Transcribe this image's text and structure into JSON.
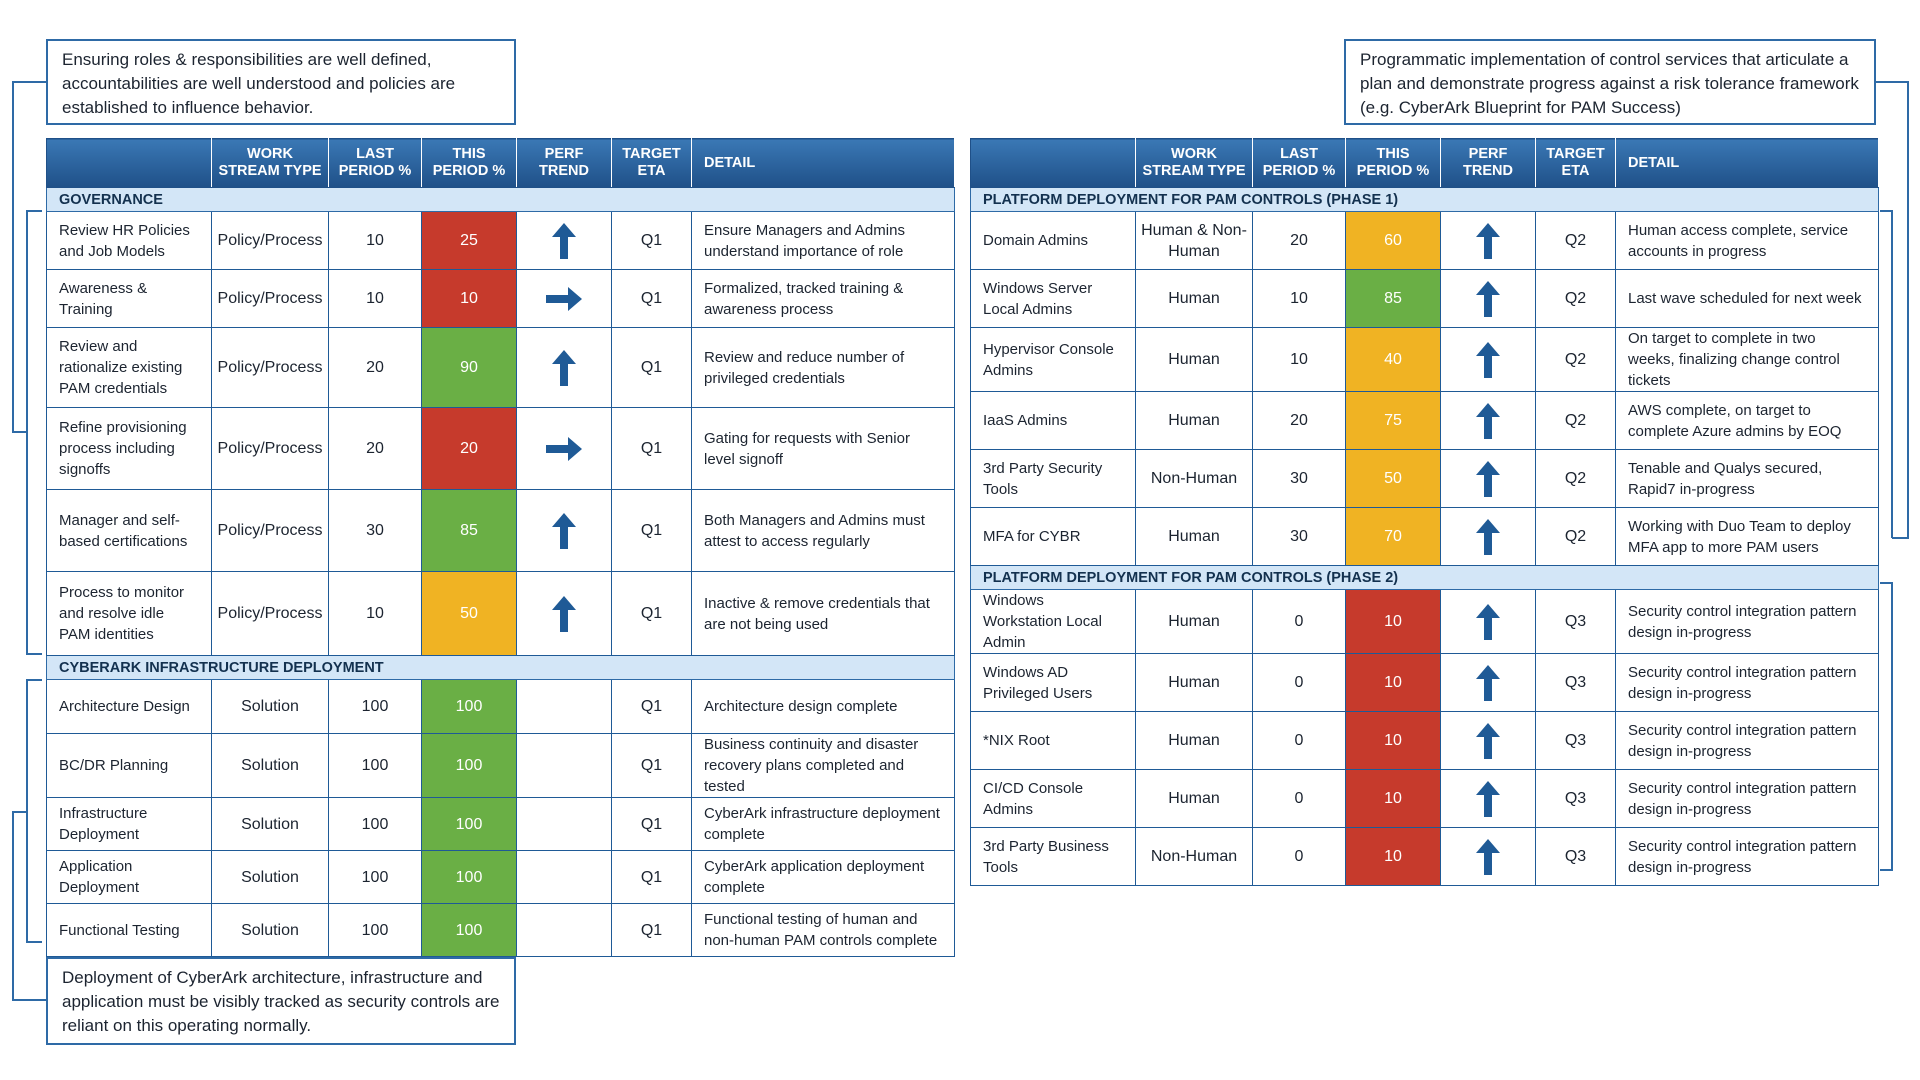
{
  "callouts": {
    "top_left": "Ensuring roles & responsibilities are well defined, accountabilities are well understood and policies are established to influence behavior.",
    "top_right": "Programmatic implementation of control services that articulate a plan and demonstrate progress against a risk tolerance framework (e.g. CyberArk Blueprint for PAM Success)",
    "bottom_left": "Deployment of CyberArk architecture, infrastructure and application must be visibly tracked as security controls are reliant on this operating normally."
  },
  "colors": {
    "red": "#c63a2c",
    "green": "#6aaf45",
    "amber": "#f0b323",
    "arrow": "#1f5a96"
  },
  "tables": [
    {
      "headers": [
        "",
        "WORK STREAM TYPE",
        "LAST PERIOD %",
        "THIS PERIOD %",
        "PERF TREND",
        "TARGET ETA",
        "DETAIL"
      ],
      "sections": [
        {
          "title": "GOVERNANCE",
          "rows": [
            {
              "name": "Review HR Policies and Job Models",
              "type": "Policy/Process",
              "last": 10,
              "this": 25,
              "status": "red",
              "trend": "up",
              "eta": "Q1",
              "detail": "Ensure Managers and Admins understand importance of role"
            },
            {
              "name": "Awareness & Training",
              "type": "Policy/Process",
              "last": 10,
              "this": 10,
              "status": "red",
              "trend": "right",
              "eta": "Q1",
              "detail": "Formalized, tracked training & awareness process"
            },
            {
              "name": "Review and rationalize existing PAM credentials",
              "type": "Policy/Process",
              "last": 20,
              "this": 90,
              "status": "green",
              "trend": "up",
              "eta": "Q1",
              "detail": "Review and reduce number of privileged credentials"
            },
            {
              "name": "Refine provisioning process including signoffs",
              "type": "Policy/Process",
              "last": 20,
              "this": 20,
              "status": "red",
              "trend": "right",
              "eta": "Q1",
              "detail": "Gating for requests with Senior level signoff"
            },
            {
              "name": "Manager and self-based certifications",
              "type": "Policy/Process",
              "last": 30,
              "this": 85,
              "status": "green",
              "trend": "up",
              "eta": "Q1",
              "detail": "Both Managers and Admins must attest to access regularly"
            },
            {
              "name": "Process to monitor and resolve idle PAM identities",
              "type": "Policy/Process",
              "last": 10,
              "this": 50,
              "status": "amber",
              "trend": "up",
              "eta": "Q1",
              "detail": "Inactive & remove credentials that are not being used"
            }
          ]
        },
        {
          "title": "CYBERARK INFRASTRUCTURE DEPLOYMENT",
          "rows": [
            {
              "name": "Architecture Design",
              "type": "Solution",
              "last": 100,
              "this": 100,
              "status": "green",
              "trend": null,
              "eta": "Q1",
              "detail": "Architecture design complete"
            },
            {
              "name": "BC/DR Planning",
              "type": "Solution",
              "last": 100,
              "this": 100,
              "status": "green",
              "trend": null,
              "eta": "Q1",
              "detail": "Business continuity and disaster recovery plans completed and tested"
            },
            {
              "name": "Infrastructure Deployment",
              "type": "Solution",
              "last": 100,
              "this": 100,
              "status": "green",
              "trend": null,
              "eta": "Q1",
              "detail": "CyberArk infrastructure deployment complete"
            },
            {
              "name": "Application Deployment",
              "type": "Solution",
              "last": 100,
              "this": 100,
              "status": "green",
              "trend": null,
              "eta": "Q1",
              "detail": "CyberArk application deployment complete"
            },
            {
              "name": "Functional Testing",
              "type": "Solution",
              "last": 100,
              "this": 100,
              "status": "green",
              "trend": null,
              "eta": "Q1",
              "detail": "Functional testing of human and non-human PAM controls complete"
            }
          ]
        }
      ]
    },
    {
      "headers": [
        "",
        "WORK STREAM TYPE",
        "LAST PERIOD %",
        "THIS PERIOD %",
        "PERF TREND",
        "TARGET ETA",
        "DETAIL"
      ],
      "sections": [
        {
          "title": "PLATFORM DEPLOYMENT FOR PAM CONTROLS (PHASE 1)",
          "rows": [
            {
              "name": "Domain Admins",
              "type": "Human & Non-Human",
              "last": 20,
              "this": 60,
              "status": "amber",
              "trend": "up",
              "eta": "Q2",
              "detail": "Human access complete, service accounts in progress"
            },
            {
              "name": "Windows Server Local Admins",
              "type": "Human",
              "last": 10,
              "this": 85,
              "status": "green",
              "trend": "up",
              "eta": "Q2",
              "detail": "Last wave scheduled for next week"
            },
            {
              "name": "Hypervisor Console Admins",
              "type": "Human",
              "last": 10,
              "this": 40,
              "status": "amber",
              "trend": "up",
              "eta": "Q2",
              "detail": "On target to complete in two weeks, finalizing change control tickets"
            },
            {
              "name": "IaaS Admins",
              "type": "Human",
              "last": 20,
              "this": 75,
              "status": "amber",
              "trend": "up",
              "eta": "Q2",
              "detail": "AWS complete, on target to complete Azure admins by EOQ"
            },
            {
              "name": "3rd Party Security Tools",
              "type": "Non-Human",
              "last": 30,
              "this": 50,
              "status": "amber",
              "trend": "up",
              "eta": "Q2",
              "detail": "Tenable and Qualys secured, Rapid7 in-progress"
            },
            {
              "name": "MFA for CYBR",
              "type": "Human",
              "last": 30,
              "this": 70,
              "status": "amber",
              "trend": "up",
              "eta": "Q2",
              "detail": "Working with Duo Team to deploy MFA app to more PAM users"
            }
          ]
        },
        {
          "title": "PLATFORM DEPLOYMENT FOR PAM CONTROLS (PHASE 2)",
          "rows": [
            {
              "name": "Windows Workstation Local Admin",
              "type": "Human",
              "last": 0,
              "this": 10,
              "status": "red",
              "trend": "up",
              "eta": "Q3",
              "detail": "Security control integration pattern design in-progress"
            },
            {
              "name": "Windows AD Privileged Users",
              "type": "Human",
              "last": 0,
              "this": 10,
              "status": "red",
              "trend": "up",
              "eta": "Q3",
              "detail": "Security control integration pattern design in-progress"
            },
            {
              "name": "*NIX Root",
              "type": "Human",
              "last": 0,
              "this": 10,
              "status": "red",
              "trend": "up",
              "eta": "Q3",
              "detail": "Security control integration pattern design in-progress"
            },
            {
              "name": "CI/CD Console Admins",
              "type": "Human",
              "last": 0,
              "this": 10,
              "status": "red",
              "trend": "up",
              "eta": "Q3",
              "detail": "Security control integration pattern design in-progress"
            },
            {
              "name": "3rd Party Business Tools",
              "type": "Non-Human",
              "last": 0,
              "this": 10,
              "status": "red",
              "trend": "up",
              "eta": "Q3",
              "detail": "Security control integration pattern design in-progress"
            }
          ]
        }
      ]
    }
  ]
}
